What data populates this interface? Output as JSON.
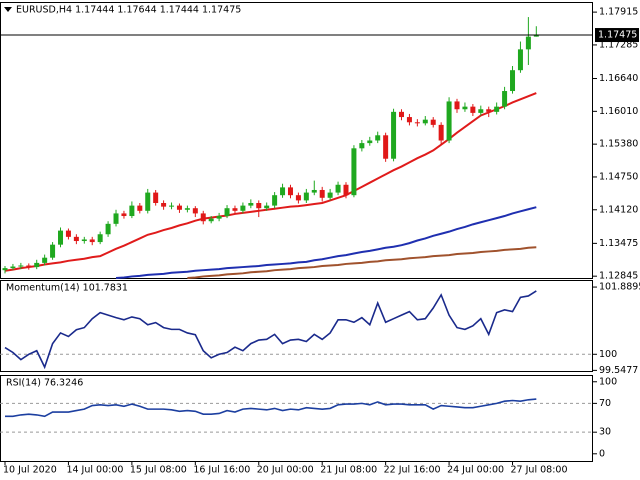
{
  "chart_data": [
    {
      "type": "candlestick",
      "title": "EURUSD,H4  1.17444 1.17644 1.17444 1.17475",
      "categories": [
        "10 Jul 2020",
        null,
        null,
        null,
        null,
        null,
        null,
        null,
        "14 Jul 00:00",
        null,
        null,
        null,
        null,
        null,
        null,
        null,
        "15 Jul 08:00",
        null,
        null,
        null,
        null,
        null,
        null,
        null,
        "16 Jul 16:00",
        null,
        null,
        null,
        null,
        null,
        null,
        null,
        "20 Jul 00:00",
        null,
        null,
        null,
        null,
        null,
        null,
        null,
        "21 Jul 08:00",
        null,
        null,
        null,
        null,
        null,
        null,
        null,
        "22 Jul 16:00",
        null,
        null,
        null,
        null,
        null,
        null,
        null,
        "24 Jul 00:00",
        null,
        null,
        null,
        null,
        null,
        null,
        null,
        "27 Jul 08:00",
        null,
        null,
        null
      ],
      "ohlc": [
        [
          1.1296,
          1.1304,
          1.129,
          1.13
        ],
        [
          1.13,
          1.1308,
          1.1296,
          1.1303
        ],
        [
          1.1303,
          1.131,
          1.1298,
          1.1305
        ],
        [
          1.1305,
          1.1309,
          1.1297,
          1.1302
        ],
        [
          1.1302,
          1.1316,
          1.1298,
          1.131
        ],
        [
          1.131,
          1.1326,
          1.1305,
          1.132
        ],
        [
          1.132,
          1.135,
          1.1316,
          1.1345
        ],
        [
          1.1345,
          1.1378,
          1.134,
          1.1372
        ],
        [
          1.1372,
          1.1376,
          1.1355,
          1.136
        ],
        [
          1.136,
          1.1365,
          1.1346,
          1.1352
        ],
        [
          1.1352,
          1.136,
          1.1347,
          1.1355
        ],
        [
          1.1355,
          1.136,
          1.1344,
          1.135
        ],
        [
          1.135,
          1.137,
          1.1346,
          1.1365
        ],
        [
          1.1365,
          1.139,
          1.136,
          1.1385
        ],
        [
          1.1385,
          1.1412,
          1.138,
          1.1405
        ],
        [
          1.1405,
          1.141,
          1.1395,
          1.14
        ],
        [
          1.14,
          1.1428,
          1.1396,
          1.142
        ],
        [
          1.142,
          1.1425,
          1.1405,
          1.141
        ],
        [
          1.141,
          1.1452,
          1.1405,
          1.1445
        ],
        [
          1.1445,
          1.145,
          1.142,
          1.1425
        ],
        [
          1.1425,
          1.143,
          1.1412,
          1.1418
        ],
        [
          1.1418,
          1.1426,
          1.1413,
          1.142
        ],
        [
          1.142,
          1.1424,
          1.1406,
          1.1412
        ],
        [
          1.1412,
          1.142,
          1.1407,
          1.1415
        ],
        [
          1.1415,
          1.1419,
          1.1398,
          1.1405
        ],
        [
          1.1405,
          1.141,
          1.1384,
          1.139
        ],
        [
          1.139,
          1.14,
          1.1386,
          1.1395
        ],
        [
          1.1395,
          1.1406,
          1.139,
          1.14
        ],
        [
          1.14,
          1.1421,
          1.1396,
          1.1415
        ],
        [
          1.1415,
          1.142,
          1.1404,
          1.141
        ],
        [
          1.141,
          1.1426,
          1.1405,
          1.142
        ],
        [
          1.142,
          1.1432,
          1.1415,
          1.1425
        ],
        [
          1.1425,
          1.143,
          1.1398,
          1.1415
        ],
        [
          1.1415,
          1.1426,
          1.141,
          1.142
        ],
        [
          1.142,
          1.1446,
          1.1415,
          1.144
        ],
        [
          1.144,
          1.1462,
          1.1435,
          1.1455
        ],
        [
          1.1455,
          1.146,
          1.1434,
          1.144
        ],
        [
          1.144,
          1.1445,
          1.1424,
          1.143
        ],
        [
          1.143,
          1.1452,
          1.1425,
          1.1445
        ],
        [
          1.1445,
          1.1468,
          1.144,
          1.145
        ],
        [
          1.145,
          1.1456,
          1.1428,
          1.1435
        ],
        [
          1.1435,
          1.1452,
          1.143,
          1.1445
        ],
        [
          1.1445,
          1.1466,
          1.144,
          1.146
        ],
        [
          1.146,
          1.1465,
          1.1434,
          1.144
        ],
        [
          1.144,
          1.1536,
          1.1436,
          1.153
        ],
        [
          1.153,
          1.1546,
          1.1524,
          1.154
        ],
        [
          1.154,
          1.1552,
          1.1535,
          1.1545
        ],
        [
          1.1545,
          1.1562,
          1.154,
          1.1555
        ],
        [
          1.1555,
          1.156,
          1.1504,
          1.151
        ],
        [
          1.151,
          1.1606,
          1.1505,
          1.16
        ],
        [
          1.16,
          1.1605,
          1.1584,
          1.159
        ],
        [
          1.159,
          1.1596,
          1.1574,
          1.158
        ],
        [
          1.158,
          1.1586,
          1.1572,
          1.1578
        ],
        [
          1.1578,
          1.1592,
          1.1574,
          1.1585
        ],
        [
          1.1585,
          1.159,
          1.157,
          1.1575
        ],
        [
          1.1575,
          1.158,
          1.1538,
          1.1545
        ],
        [
          1.1545,
          1.1628,
          1.154,
          1.162
        ],
        [
          1.162,
          1.1625,
          1.1598,
          1.1605
        ],
        [
          1.1605,
          1.1618,
          1.16,
          1.161
        ],
        [
          1.161,
          1.1615,
          1.1592,
          1.1598
        ],
        [
          1.1598,
          1.1612,
          1.1593,
          1.1605
        ],
        [
          1.1605,
          1.161,
          1.159,
          1.16
        ],
        [
          1.16,
          1.1618,
          1.1595,
          1.161
        ],
        [
          1.161,
          1.1648,
          1.1605,
          1.164
        ],
        [
          1.164,
          1.1688,
          1.1635,
          1.168
        ],
        [
          1.168,
          1.1735,
          1.1675,
          1.172
        ],
        [
          1.172,
          1.1782,
          1.169,
          1.17444
        ],
        [
          1.17444,
          1.17644,
          1.17444,
          1.17475
        ]
      ],
      "up_color": "#1fa81f",
      "down_color": "#e01818",
      "price_line": 1.17475,
      "lines": [
        {
          "color": "#e01b1b",
          "values": [
            1.1295,
            1.1297,
            1.13,
            1.1302,
            1.1304,
            1.1307,
            1.1309,
            1.1311,
            1.1314,
            1.1316,
            1.1318,
            1.1321,
            1.1323,
            1.133,
            1.1337,
            1.1343,
            1.135,
            1.1357,
            1.1364,
            1.1368,
            1.1373,
            1.1377,
            1.1382,
            1.1386,
            1.1391,
            1.1395,
            1.1397,
            1.1399,
            1.1401,
            1.1404,
            1.1406,
            1.1408,
            1.141,
            1.1412,
            1.1414,
            1.1416,
            1.1418,
            1.1419,
            1.1421,
            1.1423,
            1.1425,
            1.143,
            1.1435,
            1.144,
            1.1448,
            1.1456,
            1.1464,
            1.1472,
            1.148,
            1.1488,
            1.1495,
            1.1503,
            1.1511,
            1.1518,
            1.1526,
            1.1537,
            1.1548,
            1.156,
            1.1571,
            1.1582,
            1.1593,
            1.1599,
            1.1605,
            1.1611,
            1.1618,
            1.1624,
            1.163,
            1.1636
          ]
        },
        {
          "color": "#1f2fb0",
          "values": [
            null,
            null,
            null,
            null,
            null,
            null,
            null,
            null,
            null,
            null,
            null,
            null,
            null,
            null,
            1.1281,
            1.1282,
            1.1284,
            1.1285,
            1.1287,
            1.1288,
            1.1289,
            1.1291,
            1.1292,
            1.1293,
            1.1295,
            1.1296,
            1.1297,
            1.1298,
            1.13,
            1.1301,
            1.1302,
            1.1303,
            1.1304,
            1.1306,
            1.1307,
            1.1308,
            1.1309,
            1.1311,
            1.1312,
            1.1315,
            1.1317,
            1.132,
            1.1323,
            1.1325,
            1.1328,
            1.1331,
            1.1333,
            1.1336,
            1.1339,
            1.1341,
            1.1344,
            1.1348,
            1.1353,
            1.1357,
            1.1362,
            1.1366,
            1.137,
            1.1375,
            1.1379,
            1.1384,
            1.1388,
            1.1392,
            1.1396,
            1.14,
            1.1405,
            1.1409,
            1.1413,
            1.1417
          ]
        },
        {
          "color": "#a0522d",
          "values": [
            null,
            null,
            null,
            null,
            null,
            null,
            null,
            null,
            null,
            null,
            null,
            null,
            null,
            null,
            null,
            null,
            null,
            null,
            null,
            null,
            null,
            null,
            null,
            1.1281,
            1.1282,
            1.1284,
            1.1285,
            1.1286,
            1.1288,
            1.1289,
            1.129,
            1.1292,
            1.1293,
            1.1294,
            1.1296,
            1.1297,
            1.1298,
            1.13,
            1.1301,
            1.1302,
            1.1304,
            1.1305,
            1.1306,
            1.1308,
            1.1309,
            1.131,
            1.1312,
            1.1313,
            1.1315,
            1.1316,
            1.1317,
            1.1319,
            1.132,
            1.1321,
            1.1323,
            1.1324,
            1.1325,
            1.1327,
            1.1328,
            1.1329,
            1.1331,
            1.1332,
            1.1333,
            1.1335,
            1.1336,
            1.1337,
            1.1339,
            1.134
          ]
        }
      ],
      "ylim": [
        1.1281,
        1.1809
      ],
      "yticks": [
        1.17915,
        1.17285,
        {
          "value": 1.1664,
          "label": "1.16640"
        },
        {
          "value": 1.1601,
          "label": "1.16010"
        },
        {
          "value": 1.1538,
          "label": "1.15380"
        },
        {
          "value": 1.1475,
          "label": "1.14750"
        },
        {
          "value": 1.1412,
          "label": "1.14120"
        },
        1.13475,
        1.12845
      ]
    },
    {
      "type": "line",
      "title": "Momentum(14) 101.7831",
      "color": "#1a2a8c",
      "values": [
        100.19,
        100.05,
        99.85,
        100.0,
        100.1,
        99.64,
        100.3,
        100.6,
        100.5,
        100.69,
        100.75,
        101.0,
        101.17,
        101.1,
        101.03,
        100.97,
        101.05,
        101.0,
        100.83,
        100.89,
        100.75,
        100.7,
        100.7,
        100.6,
        100.55,
        100.1,
        99.9,
        100.0,
        100.05,
        100.2,
        100.1,
        100.3,
        100.4,
        100.42,
        100.56,
        100.3,
        100.4,
        100.42,
        100.36,
        100.56,
        100.42,
        100.6,
        100.97,
        100.97,
        100.9,
        101.03,
        100.83,
        101.44,
        100.9,
        101.0,
        101.1,
        101.2,
        100.97,
        101.0,
        101.3,
        101.67,
        101.1,
        100.75,
        100.7,
        100.8,
        101.0,
        100.56,
        101.17,
        101.25,
        101.2,
        101.6,
        101.64,
        101.78
      ],
      "ylim": [
        99.53,
        102.06
      ],
      "yticks": [
        101.8895,
        100,
        99.5477
      ],
      "levels": [
        100
      ]
    },
    {
      "type": "line",
      "title": "RSI(14) 76.3246",
      "color": "#1c3fa0",
      "values": [
        52,
        52,
        54,
        55,
        54,
        52,
        58,
        58,
        58,
        60,
        62,
        67,
        68,
        67,
        68,
        66,
        69,
        66,
        62,
        62,
        62,
        61,
        59,
        60,
        59,
        55,
        55,
        56,
        60,
        58,
        62,
        63,
        62,
        61,
        63,
        60,
        62,
        61,
        64,
        63,
        62,
        63,
        68,
        69,
        69,
        70,
        68,
        72,
        68,
        69,
        69,
        68,
        68,
        68,
        62,
        67,
        66,
        65,
        64,
        64,
        66,
        68,
        70,
        73,
        74,
        73,
        75,
        76
      ],
      "ylim": [
        -10,
        108
      ],
      "yticks": [
        100,
        70,
        30,
        0
      ],
      "levels": [
        70,
        30
      ]
    }
  ]
}
